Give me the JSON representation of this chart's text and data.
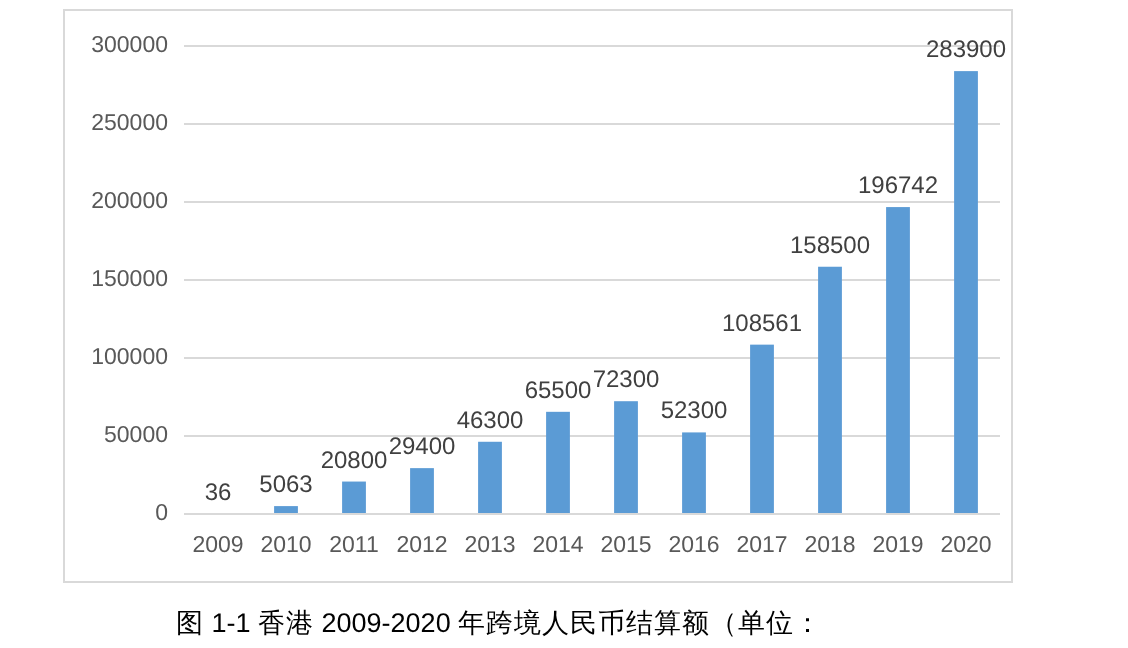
{
  "chart_data": {
    "type": "bar",
    "categories": [
      "2009",
      "2010",
      "2011",
      "2012",
      "2013",
      "2014",
      "2015",
      "2016",
      "2017",
      "2018",
      "2019",
      "2020"
    ],
    "values": [
      36,
      5063,
      20800,
      29400,
      46300,
      65500,
      72300,
      52300,
      108561,
      158500,
      196742,
      283900
    ],
    "color": "#5b9bd5",
    "ylim": [
      0,
      300000
    ],
    "yticks": [
      0,
      50000,
      100000,
      150000,
      200000,
      250000,
      300000
    ],
    "grid": "y",
    "data_labels": true,
    "annotations": [
      "图 1-1  香港 2009-2020 年跨境人民币结算额（单位："
    ]
  }
}
